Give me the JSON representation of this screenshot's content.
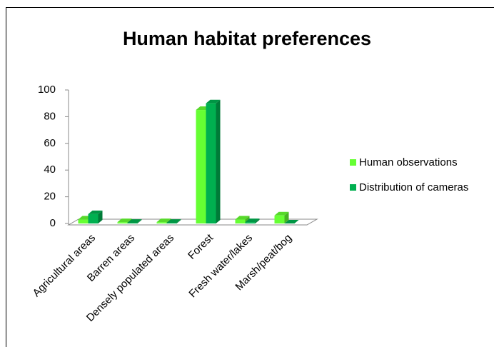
{
  "chart_data": {
    "type": "bar3d",
    "title": "Human habitat preferences",
    "categories": [
      "Agricultural areas",
      "Barren areas",
      "Densely populated areas",
      "Forest",
      "Fresh water/lakes",
      "Marsh/peat/bog"
    ],
    "series": [
      {
        "name": "Human observations",
        "color": "#66ff33",
        "values": [
          3,
          1,
          1,
          85,
          3,
          6
        ]
      },
      {
        "name": "Distribution of cameras",
        "color": "#00b050",
        "values": [
          7,
          0.5,
          0.5,
          90,
          1,
          0
        ]
      }
    ],
    "ylim": [
      0,
      100
    ],
    "yticks": [
      0,
      20,
      40,
      60,
      80,
      100
    ],
    "grid": false,
    "legend": "right"
  }
}
